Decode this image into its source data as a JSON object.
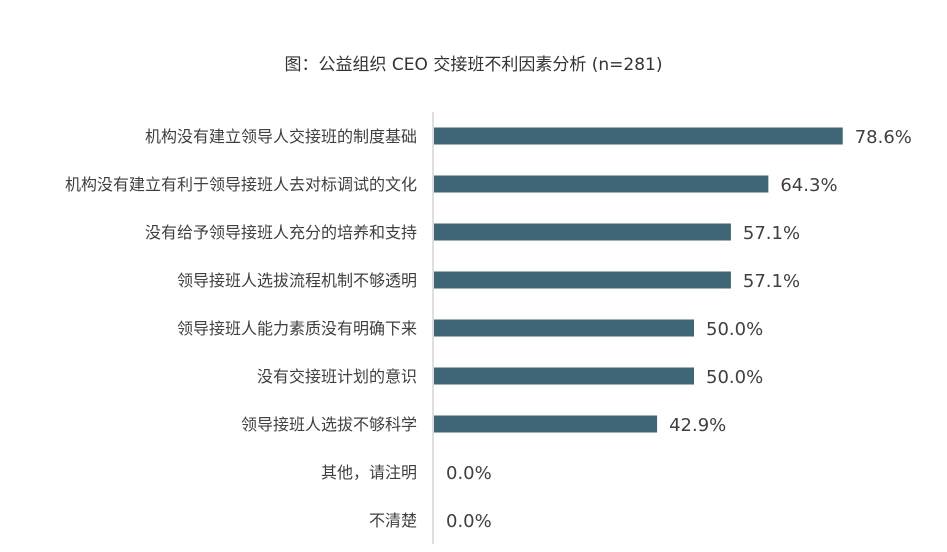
{
  "chart_data": {
    "type": "bar",
    "orientation": "horizontal",
    "title": "图：公益组织 CEO 交接班不利因素分析 (n=281)",
    "xlabel": "",
    "ylabel": "",
    "xlim": [
      0,
      100
    ],
    "grid": false,
    "legend": "none",
    "bar_color": "#3f6677",
    "axis_color": "#bfbfbf",
    "categories": [
      "机构没有建立领导人交接班的制度基础",
      "机构没有建立有利于领导接班人去对标调试的文化",
      "没有给予领导接班人充分的培养和支持",
      "领导接班人选拔流程机制不够透明",
      "领导接班人能力素质没有明确下来",
      "没有交接班计划的意识",
      "领导接班人选拔不够科学",
      "其他，请注明",
      "不清楚"
    ],
    "values": [
      78.6,
      64.3,
      57.1,
      57.1,
      50.0,
      50.0,
      42.9,
      0.0,
      0.0
    ],
    "value_labels": [
      "78.6%",
      "64.3%",
      "57.1%",
      "57.1%",
      "50.0%",
      "50.0%",
      "42.9%",
      "0.0%",
      "0.0%"
    ]
  }
}
